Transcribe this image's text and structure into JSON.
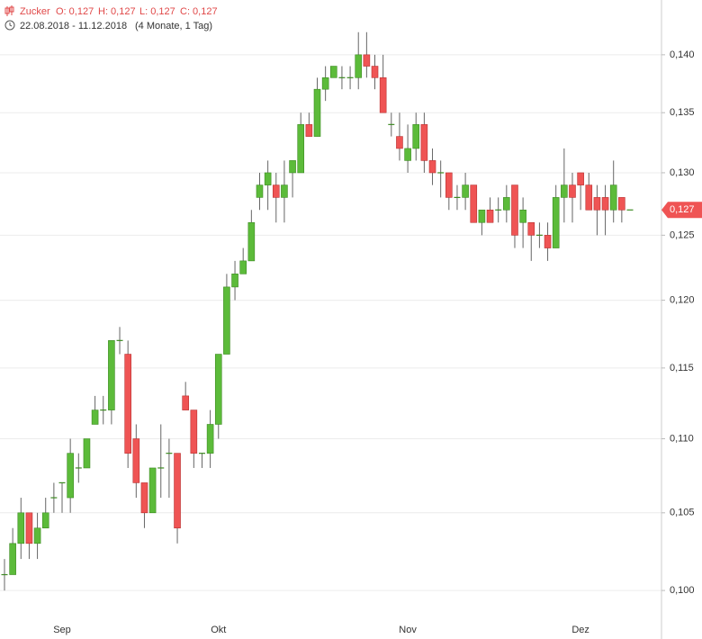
{
  "chart_data": {
    "type": "candlestick",
    "title": "Zucker",
    "ohlc_labels": [
      "O: 0,127",
      "H: 0,127",
      "L: 0,127",
      "C: 0,127"
    ],
    "subtitle": "22.08.2018 - 11.12.2018",
    "period": "(4 Monate, 1 Tag)",
    "categories": [
      null,
      null,
      null,
      null,
      null,
      null,
      null,
      "Sep",
      null,
      null,
      null,
      null,
      null,
      null,
      null,
      null,
      null,
      null,
      null,
      null,
      null,
      null,
      null,
      null,
      null,
      null,
      "Okt",
      null,
      null,
      null,
      null,
      null,
      null,
      null,
      null,
      null,
      null,
      null,
      null,
      null,
      null,
      null,
      null,
      null,
      null,
      null,
      null,
      null,
      null,
      "Nov",
      null,
      null,
      null,
      null,
      null,
      null,
      null,
      null,
      null,
      null,
      null,
      null,
      null,
      null,
      null,
      null,
      null,
      null,
      null,
      null,
      "Dez",
      null,
      null,
      null,
      null,
      null,
      null
    ],
    "open": [
      0.101,
      0.101,
      0.103,
      0.105,
      0.103,
      0.104,
      0.106,
      0.107,
      0.106,
      0.108,
      0.108,
      0.111,
      0.112,
      0.112,
      0.117,
      0.116,
      0.11,
      0.107,
      0.105,
      0.108,
      0.109,
      0.109,
      0.113,
      0.112,
      0.109,
      0.109,
      0.111,
      0.116,
      0.121,
      0.122,
      0.123,
      0.128,
      0.129,
      0.129,
      0.128,
      0.13,
      0.13,
      0.134,
      0.133,
      0.137,
      0.138,
      0.138,
      0.138,
      0.138,
      0.14,
      0.139,
      0.138,
      0.134,
      0.133,
      0.131,
      0.132,
      0.134,
      0.131,
      0.13,
      0.13,
      0.128,
      0.128,
      0.129,
      0.126,
      0.127,
      0.127,
      0.127,
      0.129,
      0.126,
      0.126,
      0.125,
      0.125,
      0.124,
      0.128,
      0.129,
      0.13,
      0.129,
      0.128,
      0.128,
      0.127,
      0.128,
      0.127
    ],
    "high": [
      0.102,
      0.104,
      0.106,
      0.105,
      0.105,
      0.106,
      0.107,
      0.107,
      0.11,
      0.109,
      0.11,
      0.113,
      0.113,
      0.117,
      0.118,
      0.117,
      0.111,
      0.107,
      0.108,
      0.111,
      0.11,
      0.109,
      0.114,
      0.112,
      0.109,
      0.112,
      0.116,
      0.122,
      0.123,
      0.124,
      0.127,
      0.13,
      0.131,
      0.13,
      0.131,
      0.131,
      0.135,
      0.135,
      0.138,
      0.139,
      0.139,
      0.139,
      0.139,
      0.142,
      0.142,
      0.14,
      0.14,
      0.135,
      0.135,
      0.134,
      0.135,
      0.135,
      0.132,
      0.131,
      0.13,
      0.129,
      0.13,
      0.129,
      0.127,
      0.128,
      0.128,
      0.129,
      0.129,
      0.128,
      0.126,
      0.126,
      0.126,
      0.129,
      0.132,
      0.13,
      0.13,
      0.13,
      0.129,
      0.129,
      0.131,
      0.128,
      0.127
    ],
    "low": [
      0.1,
      0.101,
      0.102,
      0.102,
      0.102,
      0.104,
      0.105,
      0.105,
      0.105,
      0.107,
      0.108,
      0.111,
      0.111,
      0.111,
      0.116,
      0.108,
      0.106,
      0.104,
      0.105,
      0.106,
      0.106,
      0.103,
      0.112,
      0.108,
      0.108,
      0.108,
      0.11,
      0.116,
      0.12,
      0.122,
      0.123,
      0.127,
      0.127,
      0.126,
      0.126,
      0.128,
      0.13,
      0.133,
      0.133,
      0.136,
      0.138,
      0.137,
      0.137,
      0.137,
      0.138,
      0.137,
      0.135,
      0.133,
      0.131,
      0.13,
      0.131,
      0.13,
      0.129,
      0.128,
      0.127,
      0.127,
      0.127,
      0.126,
      0.125,
      0.126,
      0.126,
      0.126,
      0.124,
      0.124,
      0.123,
      0.124,
      0.123,
      0.124,
      0.126,
      0.126,
      0.127,
      0.127,
      0.125,
      0.125,
      0.126,
      0.126,
      0.127
    ],
    "close": [
      0.101,
      0.103,
      0.105,
      0.103,
      0.104,
      0.105,
      0.106,
      0.107,
      0.109,
      0.108,
      0.11,
      0.112,
      0.112,
      0.117,
      0.117,
      0.109,
      0.107,
      0.105,
      0.108,
      0.108,
      0.109,
      0.104,
      0.112,
      0.109,
      0.109,
      0.111,
      0.116,
      0.121,
      0.122,
      0.123,
      0.126,
      0.129,
      0.13,
      0.128,
      0.129,
      0.131,
      0.134,
      0.133,
      0.137,
      0.138,
      0.139,
      0.138,
      0.138,
      0.14,
      0.139,
      0.138,
      0.135,
      0.134,
      0.132,
      0.132,
      0.134,
      0.131,
      0.13,
      0.13,
      0.128,
      0.128,
      0.129,
      0.126,
      0.127,
      0.126,
      0.127,
      0.128,
      0.125,
      0.127,
      0.125,
      0.125,
      0.124,
      0.128,
      0.129,
      0.128,
      0.129,
      0.127,
      0.127,
      0.127,
      0.129,
      0.127,
      0.127
    ],
    "up_color": "#5cbb3a",
    "down_color": "#ef5454",
    "ylim": [
      0.097,
      0.1449
    ],
    "log_scale": true,
    "grid": true,
    "yticks": [
      {
        "value": 0.1,
        "label": "0,100"
      },
      {
        "value": 0.105,
        "label": "0,105"
      },
      {
        "value": 0.11,
        "label": "0,110"
      },
      {
        "value": 0.115,
        "label": "0,115"
      },
      {
        "value": 0.12,
        "label": "0,120"
      },
      {
        "value": 0.125,
        "label": "0,125"
      },
      {
        "value": 0.13,
        "label": "0,130"
      },
      {
        "value": 0.135,
        "label": "0,135"
      },
      {
        "value": 0.14,
        "label": "0,140"
      }
    ],
    "last_price": {
      "value": 0.127,
      "label": "0,127"
    }
  }
}
